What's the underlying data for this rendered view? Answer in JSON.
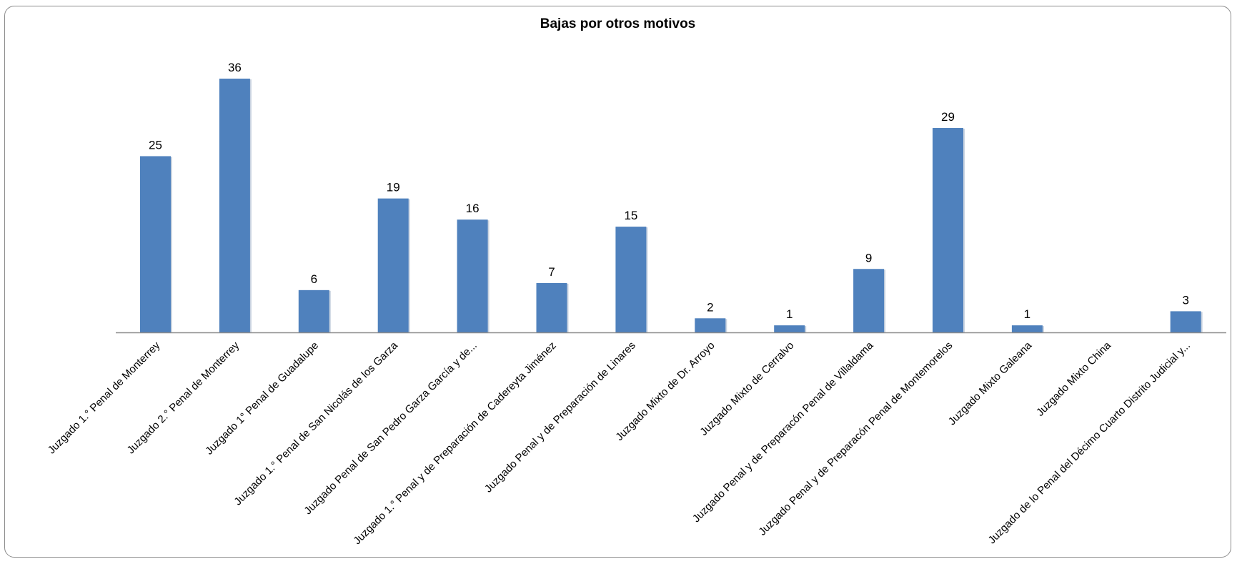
{
  "chart_data": {
    "type": "bar",
    "title": "Bajas por otros motivos",
    "xlabel": "",
    "ylabel": "",
    "grid": false,
    "legend": "none",
    "ylim": [
      0,
      36
    ],
    "bar_color": "#4f81bd",
    "categories": [
      "Juzgado 1.° Penal  de Monterrey",
      "Juzgado 2.° Penal de Monterrey",
      "Juzgado 1° Penal de Guadalupe",
      "Juzgado 1.° Penal de San Nicolás de los Garza",
      "Juzgado Penal de San Pedro Garza García y de...",
      "Juzgado 1.° Penal y de Preparación de Cadereyta Jiménez",
      "Juzgado Penal y de Preparación de Linares",
      "Juzgado Mixto de  Dr. Arroyo",
      "Juzgado Mixto de  Cerralvo",
      "Juzgado Penal y de Preparacón Penal  de Villaldama",
      "Juzgado Penal y de Preparacón Penal  de Montemorelos",
      "Juzgado Mixto Galeana",
      "Juzgado Mixto China",
      "Juzgado de lo Penal del Décimo Cuarto Distrito Judicial y..."
    ],
    "values": [
      25,
      36,
      6,
      19,
      16,
      7,
      15,
      2,
      1,
      9,
      29,
      1,
      null,
      3
    ]
  }
}
